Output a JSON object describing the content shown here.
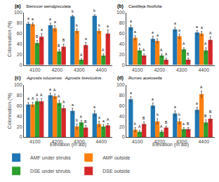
{
  "chart_data": [
    {
      "type": "bar",
      "label": "(a)",
      "title": "Stenocer wendgisculata",
      "categories": [
        "4100",
        "4200",
        "4300",
        "4400"
      ],
      "ylabel": "Colonisation (%)",
      "ylim": [
        0,
        100
      ],
      "yticks": [
        0,
        20,
        40,
        60,
        80,
        100
      ],
      "grid": false,
      "legend": "lower left",
      "series": [
        {
          "name": "AMF under shrubs",
          "color": "#1f77b4",
          "values": [
            79,
            76,
            93,
            94
          ],
          "errors": [
            3,
            4,
            2,
            2
          ],
          "annotations": [
            "a",
            "a",
            "b",
            "b"
          ]
        },
        {
          "name": "AMF outside",
          "color": "#ff7f0e",
          "values": [
            78,
            70,
            65,
            65
          ],
          "errors": [
            3,
            5,
            4,
            4
          ],
          "annotations": [
            "a",
            "a",
            "b",
            "b"
          ]
        },
        {
          "name": "DSE under shrubs",
          "color": "#2ca02c",
          "values": [
            42,
            26,
            10,
            18
          ],
          "errors": [
            5,
            4,
            2,
            3
          ],
          "annotations": [
            "B",
            "B",
            "A",
            "A"
          ]
        },
        {
          "name": "DSE outside",
          "color": "#d62728",
          "values": [
            54,
            35,
            38,
            60
          ],
          "errors": [
            6,
            5,
            5,
            7
          ],
          "annotations": [
            "a",
            "B",
            "a",
            "a"
          ]
        }
      ]
    },
    {
      "type": "bar",
      "label": "(b)",
      "title": "Castilleja fissifolia",
      "categories": [
        "4100",
        "4200",
        "4300",
        "4400"
      ],
      "ylim": [
        0,
        100
      ],
      "yticks": [
        0,
        20,
        40,
        60,
        80,
        100
      ],
      "grid": false,
      "series": [
        {
          "name": "AMF under shrubs",
          "color": "#1f77b4",
          "values": [
            72,
            50,
            68,
            62
          ],
          "errors": [
            4,
            5,
            4,
            4
          ],
          "annotations": [
            "a",
            "a",
            "a",
            "a"
          ]
        },
        {
          "name": "AMF outside",
          "color": "#ff7f0e",
          "values": [
            52,
            46,
            55,
            60
          ],
          "errors": [
            4,
            4,
            4,
            4
          ],
          "annotations": [
            "a",
            "a",
            "a",
            "a"
          ]
        },
        {
          "name": "DSE under shrubs",
          "color": "#2ca02c",
          "values": [
            28,
            18,
            30,
            28
          ],
          "errors": [
            4,
            3,
            3,
            5
          ],
          "annotations": [
            "A",
            "A",
            "A",
            "A"
          ]
        },
        {
          "name": "DSE outside",
          "color": "#d62728",
          "values": [
            18,
            10,
            10,
            48
          ],
          "errors": [
            3,
            3,
            3,
            6
          ],
          "annotations": [
            "A",
            "A",
            "B",
            "A"
          ]
        }
      ]
    },
    {
      "type": "bar",
      "label": "(c)",
      "title": "Agrostis tolucensis   Agrostis breviculnis",
      "categories": [
        "4100",
        "4200",
        "4300",
        "4400"
      ],
      "ylabel": "Colonisation (%)",
      "xlabel": "Elevation (m asl)",
      "ylim": [
        0,
        100
      ],
      "yticks": [
        0,
        20,
        40,
        60,
        80,
        100
      ],
      "grid": false,
      "series": [
        {
          "name": "AMF under shrubs",
          "color": "#1f77b4",
          "values": [
            62,
            80,
            50,
            45
          ],
          "errors": [
            4,
            4,
            5,
            5
          ],
          "annotations": [
            "a",
            "a",
            "a",
            "a"
          ]
        },
        {
          "name": "AMF outside",
          "color": "#ff7f0e",
          "values": [
            62,
            78,
            20,
            25
          ],
          "errors": [
            4,
            4,
            5,
            5
          ],
          "annotations": [
            "A",
            "A",
            "b",
            "a"
          ]
        },
        {
          "name": "DSE under shrubs",
          "color": "#2ca02c",
          "values": [
            68,
            65,
            28,
            20
          ],
          "errors": [
            5,
            5,
            4,
            4
          ],
          "annotations": [
            "A",
            "A",
            "b",
            "a"
          ]
        },
        {
          "name": "DSE outside",
          "color": "#d62728",
          "values": [
            68,
            55,
            18,
            22
          ],
          "errors": [
            5,
            5,
            4,
            4
          ],
          "annotations": [
            "A",
            "A",
            "B",
            "A"
          ]
        }
      ]
    },
    {
      "type": "bar",
      "label": "(d)",
      "title": "Rumex acetosella",
      "categories": [
        "4100",
        "4200",
        "4300",
        "4400"
      ],
      "xlabel": "Elevation (m asl)",
      "ylim": [
        0,
        100
      ],
      "yticks": [
        0,
        20,
        40,
        60,
        80,
        100
      ],
      "grid": false,
      "series": [
        {
          "name": "AMF under shrubs",
          "color": "#1f77b4",
          "values": [
            72,
            60,
            45,
            52
          ],
          "errors": [
            5,
            5,
            5,
            5
          ],
          "annotations": [
            "a",
            "a",
            "a",
            "a"
          ]
        },
        {
          "name": "AMF outside",
          "color": "#ff7f0e",
          "values": [
            14,
            30,
            30,
            82
          ],
          "errors": [
            4,
            5,
            5,
            6
          ],
          "annotations": [
            "b",
            "b",
            "b",
            "A"
          ]
        },
        {
          "name": "DSE under shrubs",
          "color": "#2ca02c",
          "values": [
            10,
            10,
            15,
            28
          ],
          "errors": [
            3,
            3,
            3,
            5
          ],
          "annotations": [
            "A",
            "A",
            "a",
            "B"
          ]
        },
        {
          "name": "DSE outside",
          "color": "#d62728",
          "values": [
            25,
            18,
            15,
            35
          ],
          "errors": [
            4,
            3,
            3,
            6
          ],
          "annotations": [
            "B",
            "B",
            "B",
            "B"
          ]
        }
      ]
    }
  ]
}
